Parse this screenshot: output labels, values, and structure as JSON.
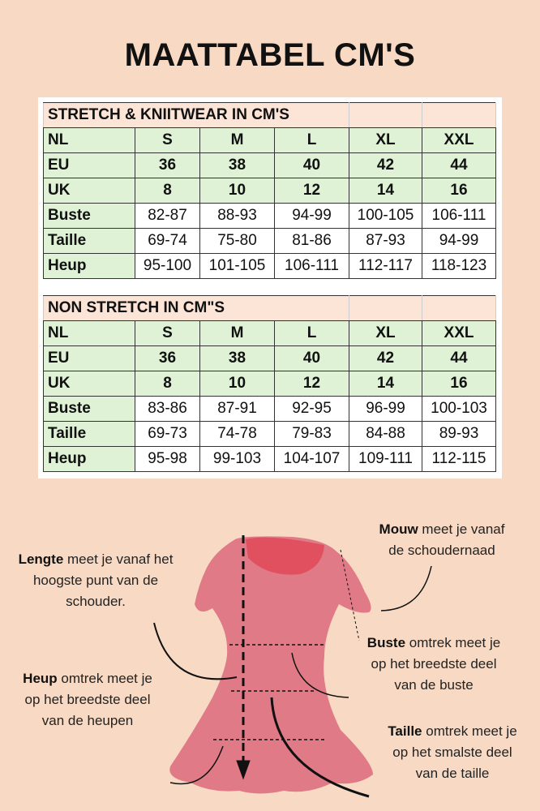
{
  "title": "MAATTABEL CM'S",
  "tables": [
    {
      "heading": "STRETCH & KNIITWEAR IN CM'S",
      "rows": [
        {
          "label": "NL",
          "values": [
            "S",
            "M",
            "L",
            "XL",
            "XXL"
          ]
        },
        {
          "label": "EU",
          "values": [
            "36",
            "38",
            "40",
            "42",
            "44"
          ]
        },
        {
          "label": "UK",
          "values": [
            "8",
            "10",
            "12",
            "14",
            "16"
          ]
        },
        {
          "label": "Buste",
          "values": [
            "82-87",
            "88-93",
            "94-99",
            "100-105",
            "106-111"
          ]
        },
        {
          "label": "Taille",
          "values": [
            "69-74",
            "75-80",
            "81-86",
            "87-93",
            "94-99"
          ]
        },
        {
          "label": "Heup",
          "values": [
            "95-100",
            "101-105",
            "106-111",
            "112-117",
            "118-123"
          ]
        }
      ]
    },
    {
      "heading": "NON STRETCH IN CM\"S",
      "rows": [
        {
          "label": "NL",
          "values": [
            "S",
            "M",
            "L",
            "XL",
            "XXL"
          ]
        },
        {
          "label": "EU",
          "values": [
            "36",
            "38",
            "40",
            "42",
            "44"
          ]
        },
        {
          "label": "UK",
          "values": [
            "8",
            "10",
            "12",
            "14",
            "16"
          ]
        },
        {
          "label": "Buste",
          "values": [
            "83-86",
            "87-91",
            "92-95",
            "96-99",
            "100-103"
          ]
        },
        {
          "label": "Taille",
          "values": [
            "69-73",
            "74-78",
            "79-83",
            "84-88",
            "89-93"
          ]
        },
        {
          "label": "Heup",
          "values": [
            "95-98",
            "99-103",
            "104-107",
            "109-111",
            "112-115"
          ]
        }
      ]
    }
  ],
  "notes": {
    "mouw": {
      "bold": "Mouw",
      "l1": " meet je vanaf",
      "l2": "de schoudernaad"
    },
    "lengte": {
      "bold": "Lengte",
      "l1": " meet je vanaf het",
      "l2": "hoogste punt van de",
      "l3": "schouder."
    },
    "buste": {
      "bold": "Buste",
      "l1": " omtrek meet je",
      "l2": "op het breedste deel",
      "l3": "van de buste"
    },
    "heup": {
      "bold": "Heup",
      "l1": " omtrek meet je",
      "l2": "op het breedste deel",
      "l3": "van de heupen"
    },
    "taille": {
      "bold": "Taille",
      "l1": " omtrek meet je",
      "l2": "op het smalste deel",
      "l3": "van de taille"
    }
  },
  "colors": {
    "background": "#f8dac4",
    "header": "#fce4d6",
    "green": "#dff2d6",
    "dress": "#e07a87",
    "neck": "#e0505f"
  }
}
